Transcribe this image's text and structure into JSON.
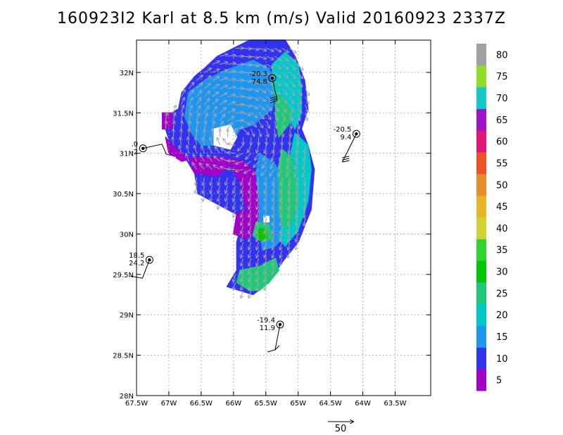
{
  "chart_data": {
    "type": "heatmap",
    "title": "160923I2 Karl at 8.5 km (m/s) Valid 20160923 2337Z",
    "xlabel": "",
    "ylabel": "",
    "xlim": [
      -67.5,
      -62.95
    ],
    "ylim": [
      28.0,
      32.4
    ],
    "x_ticks": [
      -67.5,
      -67.0,
      -66.5,
      -66.0,
      -65.5,
      -65.0,
      -64.5,
      -64.0,
      -63.5
    ],
    "x_tick_labels": [
      "67.5W",
      "67W",
      "66.5W",
      "66W",
      "65.5W",
      "65W",
      "64.5W",
      "64W",
      "63.5W"
    ],
    "y_ticks": [
      28.0,
      28.5,
      29.0,
      29.5,
      30.0,
      30.5,
      31.0,
      31.5,
      32.0
    ],
    "y_tick_labels": [
      "28N",
      "28.5N",
      "29N",
      "29.5N",
      "30N",
      "30.5N",
      "31N",
      "31.5N",
      "32N"
    ],
    "grid": true,
    "colorbar": {
      "levels": [
        5,
        10,
        15,
        20,
        25,
        30,
        35,
        40,
        45,
        50,
        55,
        60,
        65,
        70,
        75,
        80
      ],
      "colors": [
        "#a000c8",
        "#3232f0",
        "#1e96f0",
        "#00c8c8",
        "#1ec878",
        "#00c800",
        "#32d232",
        "#d2d232",
        "#e6b428",
        "#e68c28",
        "#f05028",
        "#e61478",
        "#a014c8",
        "#14c8c8",
        "#8cdc28",
        "#a0a0a0"
      ]
    },
    "stations": [
      {
        "top": "-20.3",
        "bottom": "74.8",
        "lon": -65.4,
        "lat": 31.93
      },
      {
        "top": "-20.5",
        "bottom": "9.4",
        "lon": -64.1,
        "lat": 31.24
      },
      {
        "top": ".0",
        "bottom": "-2",
        "lon": -67.4,
        "lat": 31.06
      },
      {
        "top": "18.5",
        "bottom": "24.2",
        "lon": -67.3,
        "lat": 29.68
      },
      {
        "top": "-19.4",
        "bottom": "11.9",
        "lon": -65.28,
        "lat": 28.88
      }
    ],
    "reference_vector_label": "50"
  }
}
